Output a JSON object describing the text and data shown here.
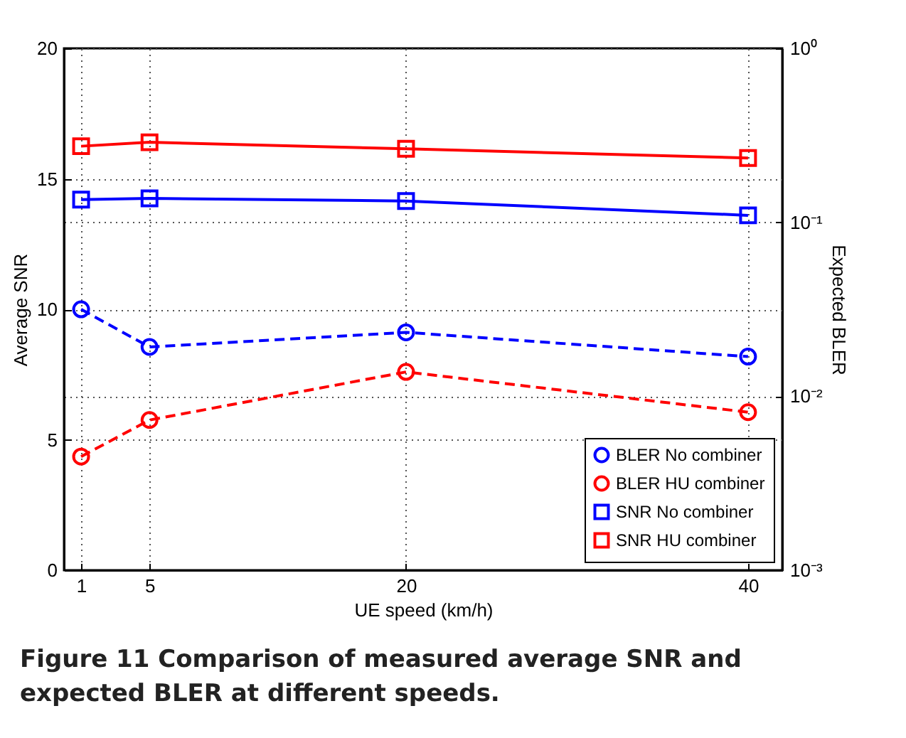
{
  "chart_data": {
    "type": "line",
    "title": "Figure 11 Comparison of measured average SNR and expected BLER at different speeds.",
    "xlabel": "UE speed (km/h)",
    "ylabel": "Average SNR",
    "y2label": "Expected BLER",
    "x": [
      1,
      5,
      20,
      40
    ],
    "xlim": [
      0,
      42
    ],
    "xticks": [
      1,
      5,
      20,
      40
    ],
    "ylim": [
      0,
      20
    ],
    "yticks": [
      0,
      5,
      10,
      15,
      20
    ],
    "y2lim": [
      0.001,
      1
    ],
    "y2ticks": [
      {
        "value": 0.001,
        "label": "10⁻³"
      },
      {
        "value": 0.01,
        "label": "10⁻²"
      },
      {
        "value": 0.1,
        "label": "10⁻¹"
      },
      {
        "value": 1,
        "label": "10⁰"
      }
    ],
    "log": "y2",
    "grid": true,
    "legend": "bottom right",
    "series": [
      {
        "name": "BLER No combiner",
        "color": "#0000ff",
        "axis": "y2",
        "marker": "circle",
        "line_style": "dashed",
        "values": [
          0.0316,
          0.0192,
          0.0233,
          0.0169
        ]
      },
      {
        "name": "BLER HU combiner",
        "color": "#ff0000",
        "axis": "y2",
        "marker": "circle",
        "line_style": "dashed",
        "values": [
          0.0045,
          0.0073,
          0.0138,
          0.0081
        ]
      },
      {
        "name": "SNR No combiner",
        "color": "#0000ff",
        "axis": "y",
        "marker": "square",
        "line_style": "solid",
        "values": [
          14.2,
          14.25,
          14.15,
          13.6
        ]
      },
      {
        "name": "SNR HU combiner",
        "color": "#ff0000",
        "axis": "y",
        "marker": "square",
        "line_style": "solid",
        "values": [
          16.25,
          16.4,
          16.15,
          15.8
        ]
      }
    ]
  }
}
